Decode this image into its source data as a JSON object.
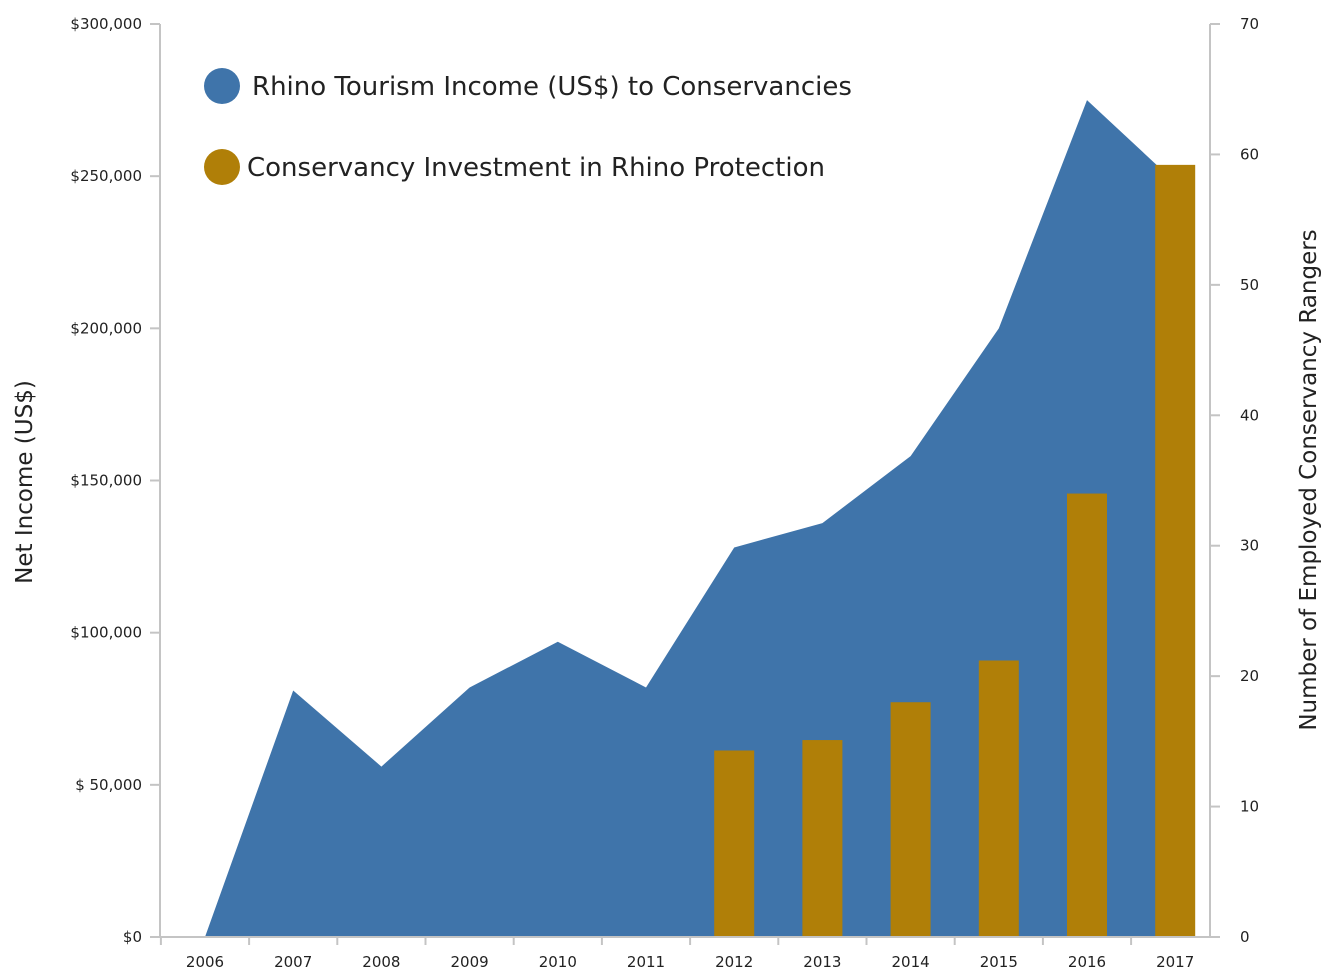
{
  "chart_data": {
    "type": "area",
    "x": [
      "2006",
      "2007",
      "2008",
      "2009",
      "2010",
      "2011",
      "2012",
      "2013",
      "2014",
      "2015",
      "2016",
      "2017"
    ],
    "y_left": {
      "label": "Net Income (US$)",
      "range": [
        0,
        300000
      ],
      "ticks": [
        0,
        50000,
        100000,
        150000,
        200000,
        250000,
        300000
      ],
      "tick_labels": [
        "$0",
        "$ 50,000",
        "$100,000",
        "$150,000",
        "$200,000",
        "$250,000",
        "$300,000"
      ]
    },
    "y_right": {
      "label": "Number of Employed Conservancy Rangers",
      "range": [
        0,
        70
      ],
      "ticks": [
        0,
        10,
        20,
        30,
        40,
        50,
        60,
        70
      ],
      "tick_labels": [
        "0",
        "10",
        "20",
        "30",
        "40",
        "50",
        "60",
        "70"
      ]
    },
    "series": [
      {
        "name": "Rhino Tourism Income (US$) to Conservancies",
        "type": "area",
        "axis": "left",
        "color": "#3f74aa",
        "values": [
          0,
          81000,
          56000,
          82000,
          97000,
          82000,
          128000,
          136000,
          158000,
          200000,
          275000,
          248000
        ]
      },
      {
        "name": "Conservancy Investment in Rhino Protection",
        "type": "bar",
        "axis": "right",
        "color": "#b07f08",
        "values": [
          null,
          null,
          null,
          null,
          null,
          null,
          14.3,
          15.1,
          18,
          21.2,
          34,
          59.2
        ]
      }
    ],
    "legend_position": "top-left",
    "grid": false
  }
}
